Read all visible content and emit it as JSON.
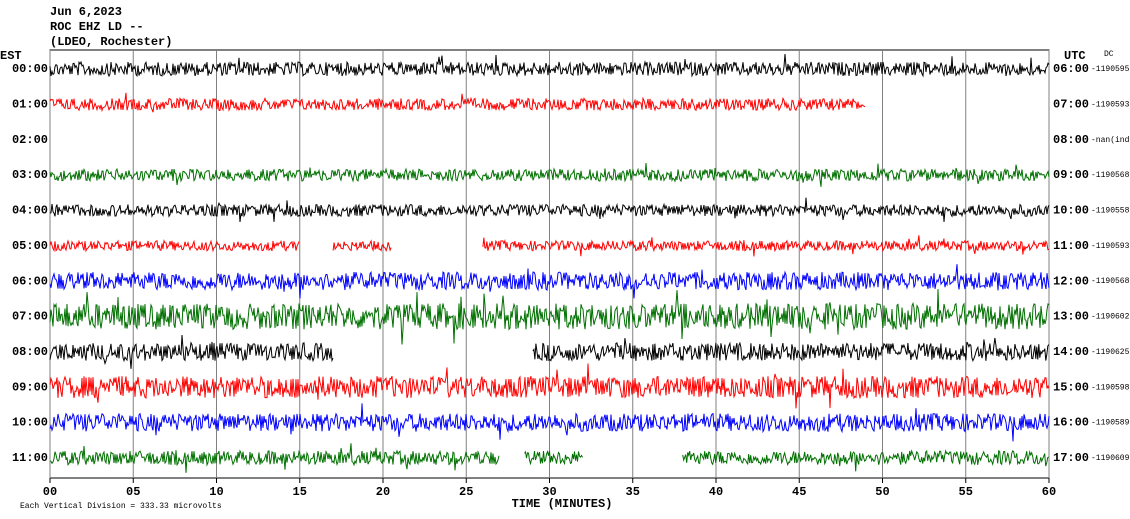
{
  "chart_data": {
    "type": "helicorder",
    "title_lines": [
      "Jun 6,2023",
      "ROC EHZ LD --",
      "(LDEO, Rochester)"
    ],
    "left_axis_label": "EST",
    "right_axis_label": "UTC",
    "right_column_label": "DC",
    "xlabel": "TIME (MINUTES)",
    "footnote": "Each Vertical Division =  333.33 microvolts",
    "xlim": [
      0,
      60
    ],
    "xticks": [
      {
        "value": 0,
        "label": "00"
      },
      {
        "value": 5,
        "label": "05"
      },
      10,
      15,
      20,
      25,
      30,
      35,
      40,
      45,
      50,
      55,
      60
    ],
    "grid": true,
    "rows": [
      {
        "est": "00:00",
        "utc": "06:00",
        "offset": "-1190595",
        "color": "#000000",
        "spans": [
          [
            0,
            60
          ]
        ]
      },
      {
        "est": "01:00",
        "utc": "07:00",
        "offset": "-1190593",
        "color": "#ff0000",
        "spans": [
          [
            0,
            49
          ]
        ]
      },
      {
        "est": "02:00",
        "utc": "08:00",
        "offset": "-nan(ind",
        "color": "#000000",
        "spans": []
      },
      {
        "est": "03:00",
        "utc": "09:00",
        "offset": "-1190568",
        "color": "#007000",
        "spans": [
          [
            0,
            60
          ]
        ]
      },
      {
        "est": "04:00",
        "utc": "10:00",
        "offset": "-1190558",
        "color": "#000000",
        "spans": [
          [
            0,
            60
          ]
        ]
      },
      {
        "est": "05:00",
        "utc": "11:00",
        "offset": "-1190593",
        "color": "#ff0000",
        "spans": [
          [
            0,
            15
          ],
          [
            17,
            20.5
          ],
          [
            26,
            60
          ]
        ]
      },
      {
        "est": "06:00",
        "utc": "12:00",
        "offset": "-1190568",
        "color": "#0000ff",
        "spans": [
          [
            0,
            60
          ]
        ]
      },
      {
        "est": "07:00",
        "utc": "13:00",
        "offset": "-1190602",
        "color": "#007000",
        "spans": [
          [
            0,
            60
          ]
        ]
      },
      {
        "est": "08:00",
        "utc": "14:00",
        "offset": "-1190625",
        "color": "#000000",
        "spans": [
          [
            0,
            17
          ],
          [
            29,
            60
          ]
        ]
      },
      {
        "est": "09:00",
        "utc": "15:00",
        "offset": "-1190598",
        "color": "#ff0000",
        "spans": [
          [
            0,
            60
          ]
        ]
      },
      {
        "est": "10:00",
        "utc": "16:00",
        "offset": "-1190589",
        "color": "#0000ff",
        "spans": [
          [
            0,
            60
          ]
        ]
      },
      {
        "est": "11:00",
        "utc": "17:00",
        "offset": "-1190609",
        "color": "#007000",
        "spans": [
          [
            0,
            27
          ],
          [
            28.5,
            32
          ],
          [
            38,
            60
          ]
        ]
      }
    ]
  }
}
